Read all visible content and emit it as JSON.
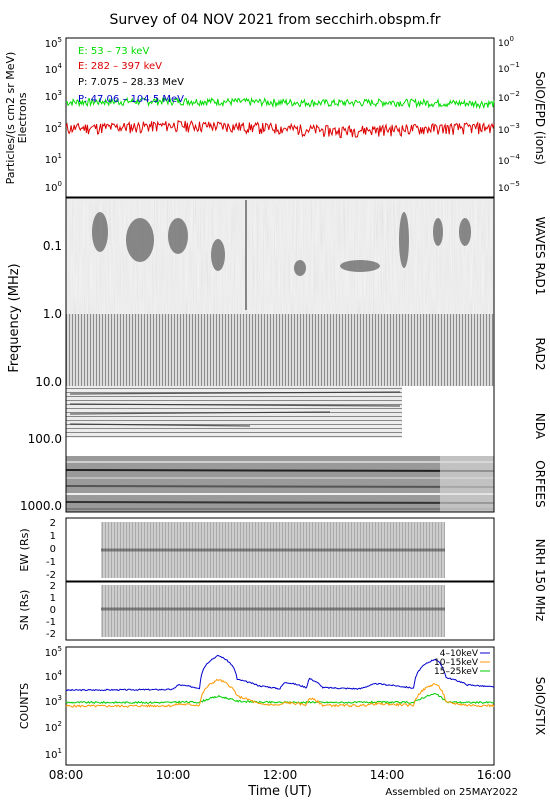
{
  "title": "Survey of 04 NOV 2021 from secchirh.obspm.fr",
  "footer": "Assembled on 25MAY2022",
  "time_axis": {
    "label": "Time (UT)",
    "range_hours": [
      8,
      16
    ],
    "ticks": [
      "08:00",
      "10:00",
      "12:00",
      "14:00",
      "16:00"
    ]
  },
  "colors": {
    "electrons_low": "#00dd00",
    "electrons_high": "#dd0000",
    "protons_low": "#000000",
    "protons_high": "#0000cc",
    "stix_4_10": "#0000cc",
    "stix_10_15": "#ff9900",
    "stix_15_25": "#00cc00"
  },
  "panels": {
    "epd": {
      "left_label": "Particles/(s cm2 sr MeV)",
      "left_label2": "Electrons",
      "right_label": "SolO/EPD (ions)",
      "left_ticks": [
        "10^5",
        "10^4",
        "10^3",
        "10^2",
        "10^1",
        "10^0"
      ],
      "right_ticks": [
        "10^0",
        "10^-1",
        "10^-2",
        "10^-3",
        "10^-4",
        "10^-5"
      ],
      "legend": [
        {
          "text": "E: 53 – 73 keV",
          "color": "#00dd00"
        },
        {
          "text": "E: 282 – 397 keV",
          "color": "#dd0000"
        },
        {
          "text": "P: 7.075 – 28.33 MeV",
          "color": "#000000"
        },
        {
          "text": "P: 47.06 – 104.5 MeV",
          "color": "#0000cc"
        }
      ]
    },
    "radio": {
      "ylabel": "Frequency (MHz)",
      "ticks": [
        "0.1",
        "1.0",
        "10.0",
        "100.0",
        "1000.0"
      ],
      "instruments": [
        "WAVES RAD1",
        "RAD2",
        "NDA",
        "ORFEES"
      ]
    },
    "nrh": {
      "instrument": "NRH 150 MHz",
      "ew_label": "EW (Rs)",
      "sn_label": "SN (Rs)",
      "ticks": [
        "2",
        "1",
        "0",
        "-1",
        "-2"
      ]
    },
    "stix": {
      "ylabel": "COUNTS",
      "instrument": "SolO/STIX",
      "ticks": [
        "10^5",
        "10^4",
        "10^3",
        "10^2",
        "10^1"
      ],
      "legend": [
        "4–10keV",
        "10–15keV",
        "15–25keV"
      ]
    }
  },
  "chart_data": [
    {
      "type": "line",
      "title": "SolO/EPD",
      "yscale": "log",
      "ylim": [
        1,
        100000
      ],
      "x_hours": [
        8,
        9,
        10,
        11,
        12,
        13,
        14,
        15,
        16
      ],
      "series": [
        {
          "name": "E: 53 – 73 keV",
          "values": [
            900,
            950,
            1000,
            950,
            900,
            850,
            900,
            850,
            800
          ]
        },
        {
          "name": "E: 282 – 397 keV",
          "values": [
            110,
            120,
            140,
            130,
            110,
            90,
            100,
            110,
            120
          ]
        }
      ]
    },
    {
      "type": "line",
      "title": "SolO/STIX",
      "yscale": "log",
      "ylim": [
        1,
        100000
      ],
      "x_hours": [
        8,
        9,
        10,
        10.1,
        10.5,
        10.85,
        11.2,
        11.6,
        12,
        12.1,
        12.5,
        12.55,
        12.8,
        13.5,
        13.8,
        14.5,
        14.9,
        15.1,
        15.5,
        16
      ],
      "series": [
        {
          "name": "4–10keV",
          "values": [
            1200,
            1250,
            1300,
            2200,
            1500,
            60000,
            4000,
            2000,
            1400,
            3000,
            1600,
            4500,
            1600,
            1400,
            2500,
            1500,
            40000,
            5000,
            2200,
            1700
          ]
        },
        {
          "name": "10–15keV",
          "values": [
            200,
            200,
            210,
            250,
            220,
            4000,
            600,
            250,
            220,
            300,
            230,
            500,
            220,
            210,
            260,
            220,
            2500,
            300,
            220,
            210
          ]
        },
        {
          "name": "15–25keV",
          "values": [
            300,
            300,
            300,
            320,
            310,
            600,
            350,
            310,
            300,
            310,
            300,
            320,
            300,
            300,
            310,
            300,
            800,
            320,
            300,
            300
          ]
        }
      ]
    }
  ]
}
